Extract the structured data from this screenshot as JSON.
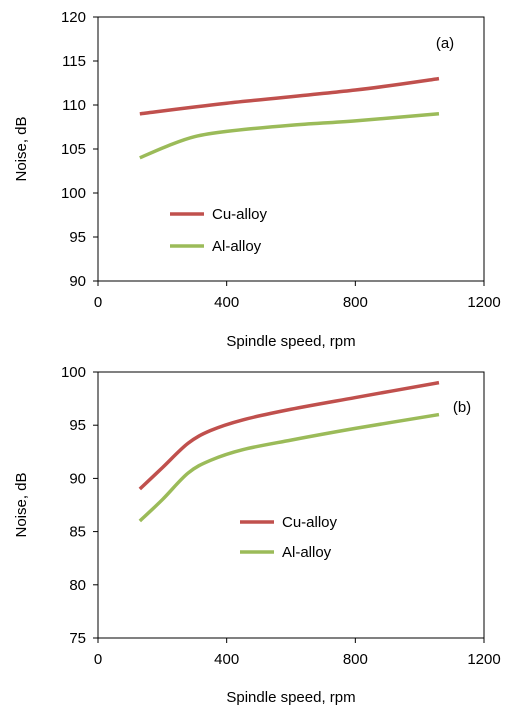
{
  "chart_data": [
    {
      "type": "line",
      "panel_label": "(a)",
      "xlabel": "Spindle speed, rpm",
      "ylabel": "Noise, dB",
      "xlim": [
        0,
        1200
      ],
      "ylim": [
        90,
        120
      ],
      "xticks": [
        0,
        400,
        800,
        1200
      ],
      "yticks": [
        90,
        95,
        100,
        105,
        110,
        115,
        120
      ],
      "grid": false,
      "legend_position": "bottom-left",
      "series": [
        {
          "name": "Cu-alloy",
          "color": "#C0504D",
          "points": [
            [
              130,
              109
            ],
            [
              400,
              110.2
            ],
            [
              800,
              111.7
            ],
            [
              1060,
              113
            ]
          ]
        },
        {
          "name": "Al-alloy",
          "color": "#9BBB59",
          "points": [
            [
              130,
              104
            ],
            [
              220,
              105.4
            ],
            [
              300,
              106.4
            ],
            [
              400,
              107
            ],
            [
              600,
              107.7
            ],
            [
              800,
              108.2
            ],
            [
              1060,
              109
            ]
          ]
        }
      ]
    },
    {
      "type": "line",
      "panel_label": "(b)",
      "xlabel": "Spindle speed, rpm",
      "ylabel": "Noise, dB",
      "xlim": [
        0,
        1200
      ],
      "ylim": [
        75,
        100
      ],
      "xticks": [
        0,
        400,
        800,
        1200
      ],
      "yticks": [
        75,
        80,
        85,
        90,
        95,
        100
      ],
      "grid": false,
      "legend_position": "center",
      "series": [
        {
          "name": "Cu-alloy",
          "color": "#C0504D",
          "points": [
            [
              130,
              89
            ],
            [
              200,
              91
            ],
            [
              280,
              93.3
            ],
            [
              350,
              94.5
            ],
            [
              450,
              95.5
            ],
            [
              600,
              96.5
            ],
            [
              800,
              97.6
            ],
            [
              1060,
              99
            ]
          ]
        },
        {
          "name": "Al-alloy",
          "color": "#9BBB59",
          "points": [
            [
              130,
              86
            ],
            [
              200,
              88
            ],
            [
              280,
              90.5
            ],
            [
              350,
              91.7
            ],
            [
              450,
              92.7
            ],
            [
              600,
              93.6
            ],
            [
              800,
              94.7
            ],
            [
              1060,
              96
            ]
          ]
        }
      ]
    }
  ]
}
